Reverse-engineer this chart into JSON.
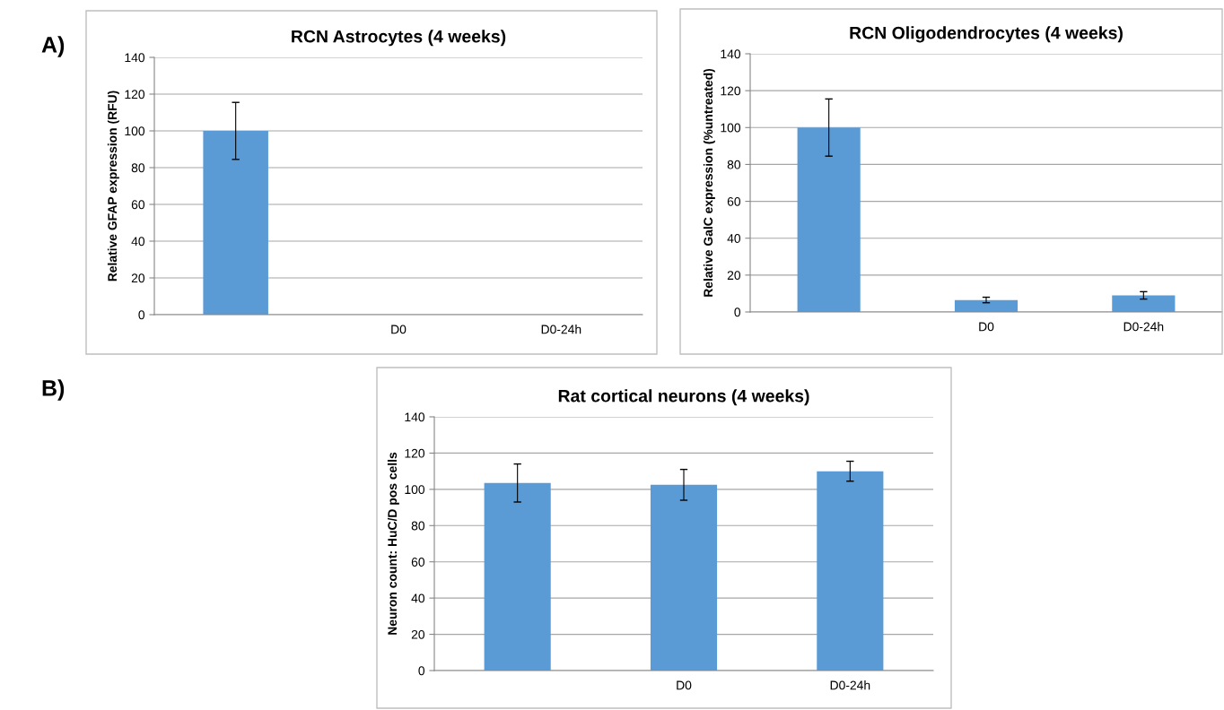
{
  "chart_data": [
    {
      "type": "bar",
      "title": "RCN Astrocytes (4 weeks)",
      "ylabel": "Relative GFAP expression (RFU)",
      "categories": [
        null,
        "D0",
        "D0-24h"
      ],
      "values": [
        100,
        0,
        0
      ],
      "errors": [
        15.5,
        null,
        null
      ],
      "color": "#5b9bd5",
      "ylim": [
        0,
        140
      ],
      "yticks": [
        0,
        20,
        40,
        60,
        80,
        100,
        120,
        140
      ],
      "grid": "y",
      "annotations": [
        "A)"
      ]
    },
    {
      "type": "bar",
      "title": "RCN Oligodendrocytes (4 weeks)",
      "ylabel": "Relative GalC expression (%untreated)",
      "categories": [
        null,
        "D0",
        "D0-24h"
      ],
      "values": [
        100,
        6.5,
        9
      ],
      "errors": [
        15.5,
        1.5,
        2
      ],
      "color": "#5b9bd5",
      "ylim": [
        0,
        140
      ],
      "yticks": [
        0,
        20,
        40,
        60,
        80,
        100,
        120,
        140
      ],
      "grid": "y"
    },
    {
      "type": "bar",
      "title": "Rat cortical neurons (4 weeks)",
      "ylabel": "Neuron count: HuC/D pos cells",
      "categories": [
        null,
        "D0",
        "D0-24h"
      ],
      "values": [
        103.5,
        102.5,
        110
      ],
      "errors": [
        10.5,
        8.5,
        5.5
      ],
      "color": "#5b9bd5",
      "ylim": [
        0,
        140
      ],
      "yticks": [
        0,
        20,
        40,
        60,
        80,
        100,
        120,
        140
      ],
      "grid": "y",
      "annotations": [
        "B)"
      ]
    }
  ]
}
